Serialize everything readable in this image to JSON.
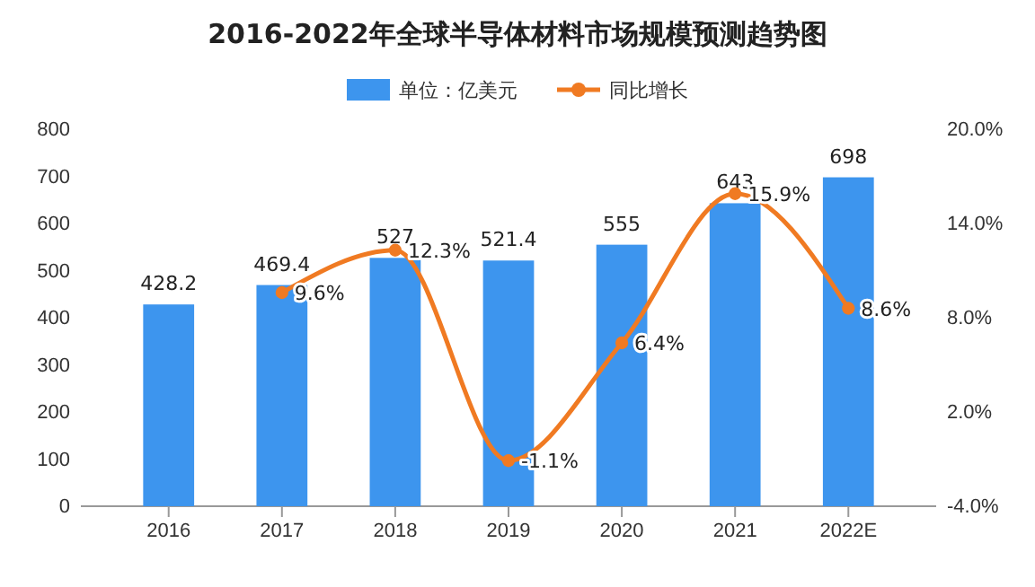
{
  "chart_data": {
    "type": "bar",
    "title": "2016-2022年全球半导体材料市场规模预测趋势图",
    "categories": [
      "2016",
      "2017",
      "2018",
      "2019",
      "2020",
      "2021",
      "2022E"
    ],
    "series": [
      {
        "name": "单位：亿美元",
        "color": "#3d95ee",
        "values": [
          428.2,
          469.4,
          527,
          521.4,
          555,
          643,
          698
        ],
        "value_labels": [
          "428.2",
          "469.4",
          "527",
          "521.4",
          "555",
          "643",
          "698"
        ]
      },
      {
        "name": "同比增长",
        "type": "line",
        "axis": "y2",
        "color": "#f07a22",
        "values": [
          null,
          9.6,
          12.3,
          -1.1,
          6.4,
          15.9,
          8.6
        ],
        "value_labels": [
          null,
          "9.6%",
          "12.3%",
          "-1.1%",
          "6.4%",
          "15.9%",
          "8.6%"
        ]
      }
    ],
    "ylim": [
      0,
      800
    ],
    "yticks": [
      0,
      100,
      200,
      300,
      400,
      500,
      600,
      700,
      800
    ],
    "y2lim": [
      -4,
      20
    ],
    "y2ticks": [
      {
        "value": -4,
        "label": "-4.0%"
      },
      {
        "value": 2,
        "label": "2.0%"
      },
      {
        "value": 8,
        "label": "8.0%"
      },
      {
        "value": 14,
        "label": "14.0%"
      },
      {
        "value": 20,
        "label": "20.0%"
      }
    ],
    "legend": "top",
    "marker": "circle",
    "grid": false
  }
}
